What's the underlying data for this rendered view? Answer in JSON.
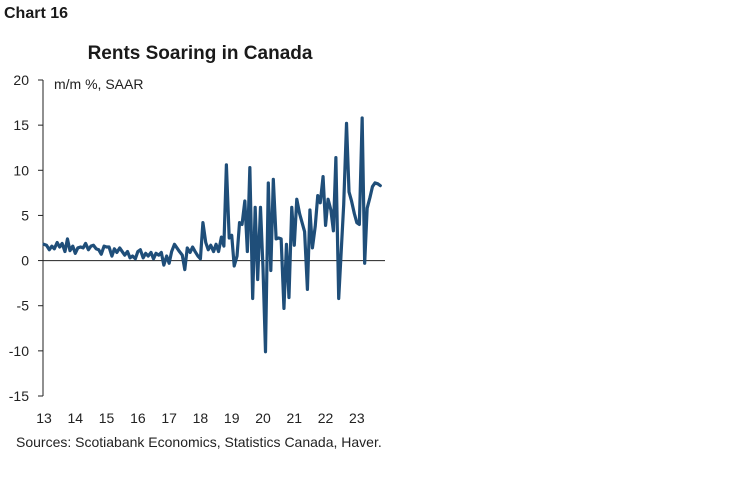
{
  "header": {
    "chart_label": "Chart 16"
  },
  "chart_data": {
    "type": "line",
    "title": "Rents Soaring in Canada",
    "ylabel": "m/m %, SAAR",
    "xlabel": "",
    "ylim": [
      -15,
      20
    ],
    "yticks": [
      "20",
      "15",
      "10",
      "5",
      "0",
      "-5",
      "-10",
      "-15"
    ],
    "ytick_values": [
      20,
      15,
      10,
      5,
      0,
      -5,
      -10,
      -15
    ],
    "xlim": [
      13,
      23.9
    ],
    "xticks": [
      "13",
      "14",
      "15",
      "16",
      "17",
      "18",
      "19",
      "20",
      "21",
      "22",
      "23"
    ],
    "xtick_values": [
      13,
      14,
      15,
      16,
      17,
      18,
      19,
      20,
      21,
      22,
      23
    ],
    "grid": false,
    "line_color": "#1f4e79",
    "series": [
      {
        "x": [
          13.0,
          13.08,
          13.17,
          13.25,
          13.33,
          13.42,
          13.5,
          13.58,
          13.67,
          13.75,
          13.83,
          13.92,
          14.0,
          14.08,
          14.17,
          14.25,
          14.33,
          14.42,
          14.5,
          14.58,
          14.67,
          14.75,
          14.83,
          14.92,
          15.0,
          15.08,
          15.17,
          15.25,
          15.33,
          15.42,
          15.5,
          15.58,
          15.67,
          15.75,
          15.83,
          15.92,
          16.0,
          16.08,
          16.17,
          16.25,
          16.33,
          16.42,
          16.5,
          16.58,
          16.67,
          16.75,
          16.83,
          16.92,
          17.0,
          17.08,
          17.17,
          17.25,
          17.33,
          17.42,
          17.5,
          17.58,
          17.67,
          17.75,
          17.83,
          17.92,
          18.0,
          18.08,
          18.17,
          18.25,
          18.33,
          18.42,
          18.5,
          18.58,
          18.67,
          18.75,
          18.83,
          18.92,
          19.0,
          19.08,
          19.17,
          19.25,
          19.33,
          19.42,
          19.5,
          19.58,
          19.67,
          19.75,
          19.83,
          19.92,
          20.0,
          20.08,
          20.17,
          20.25,
          20.33,
          20.42,
          20.5,
          20.58,
          20.67,
          20.75,
          20.83,
          20.92,
          21.0,
          21.08,
          21.17,
          21.25,
          21.33,
          21.42,
          21.5,
          21.58,
          21.67,
          21.75,
          21.83,
          21.92,
          22.0,
          22.08,
          22.17,
          22.25,
          22.33,
          22.42,
          22.5,
          22.58,
          22.67,
          22.75,
          22.83,
          22.92,
          23.0,
          23.08,
          23.17,
          23.25,
          23.33,
          23.42,
          23.5,
          23.58,
          23.67,
          23.75
        ],
        "values": [
          1.8,
          1.7,
          1.2,
          1.6,
          1.3,
          2.0,
          1.5,
          1.9,
          1.0,
          2.4,
          1.1,
          1.6,
          0.8,
          1.4,
          1.5,
          1.4,
          1.9,
          1.2,
          1.6,
          1.7,
          1.3,
          1.2,
          0.7,
          1.6,
          1.5,
          1.5,
          0.5,
          1.3,
          0.9,
          1.4,
          1.0,
          0.6,
          1.0,
          0.3,
          0.5,
          0.2,
          1.0,
          1.2,
          0.3,
          0.8,
          0.5,
          0.9,
          0.2,
          0.8,
          0.6,
          0.9,
          -0.5,
          0.5,
          -0.3,
          1.0,
          1.8,
          1.4,
          1.0,
          0.6,
          -1.0,
          1.4,
          0.9,
          1.5,
          1.0,
          0.5,
          0.2,
          4.2,
          2.0,
          1.2,
          1.7,
          1.0,
          1.8,
          1.0,
          2.6,
          1.6,
          10.6,
          2.5,
          2.8,
          -0.6,
          0.5,
          4.2,
          4.0,
          6.6,
          1.0,
          10.3,
          -4.2,
          5.9,
          -2.1,
          5.9,
          -0.8,
          -10.1,
          8.6,
          -1.1,
          9.0,
          2.4,
          2.5,
          2.4,
          -5.3,
          1.8,
          -4.1,
          5.9,
          1.7,
          6.8,
          5.2,
          4.2,
          3.2,
          -3.2,
          5.6,
          1.4,
          3.8,
          7.2,
          6.4,
          9.3,
          3.9,
          6.8,
          5.6,
          3.3,
          11.4,
          -4.2,
          1.0,
          6.2,
          15.2,
          7.6,
          6.6,
          5.2,
          4.2,
          4.0,
          15.8,
          -0.3,
          5.8,
          7.0,
          8.2,
          8.6,
          8.5,
          8.3
        ]
      }
    ]
  },
  "footer": {
    "source": "Sources: Scotiabank Economics, Statistics Canada, Haver."
  }
}
